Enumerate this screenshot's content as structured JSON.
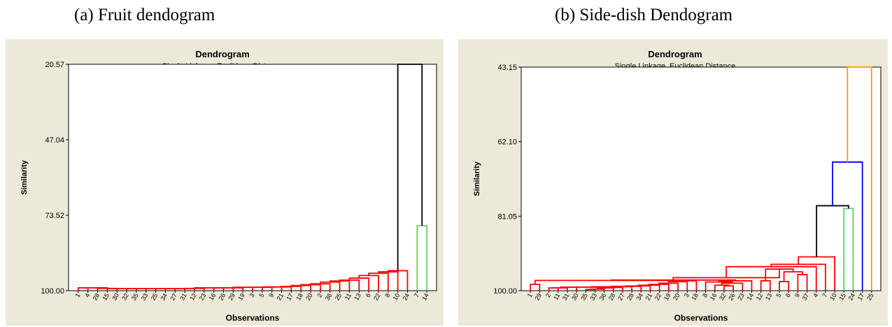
{
  "figure": {
    "caption_a": "(a)  Fruit dendogram",
    "caption_b": "(b) Side-dish Dendogram"
  },
  "chart_data": [
    {
      "type": "dendrogram",
      "title": "Dendrogram",
      "subtitle": "Single Linkage, Euclidean Distance",
      "xlabel": "Observations",
      "ylabel": "Similarity",
      "yticks": [
        "20.57",
        "47.04",
        "73.52",
        "100.00"
      ],
      "ylim": [
        20.57,
        100.0
      ],
      "leaves": [
        "1",
        "4",
        "28",
        "15",
        "30",
        "32",
        "35",
        "33",
        "25",
        "34",
        "27",
        "31",
        "12",
        "23",
        "16",
        "26",
        "29",
        "19",
        "3",
        "5",
        "9",
        "21",
        "17",
        "18",
        "20",
        "2",
        "36",
        "25",
        "11",
        "13",
        "6",
        "22",
        "8",
        "10",
        "24",
        "7",
        "14"
      ],
      "merges": [
        {
          "members": [
            0,
            1
          ],
          "height": 99.0,
          "color": "#ff0000"
        },
        {
          "members": [
            0,
            2
          ],
          "height": 99.0,
          "color": "#ff0000"
        },
        {
          "members": [
            0,
            3
          ],
          "height": 99.0,
          "color": "#ff0000"
        },
        {
          "members": [
            0,
            4
          ],
          "height": 99.2,
          "color": "#ff0000"
        },
        {
          "members": [
            0,
            5
          ],
          "height": 99.3,
          "color": "#ff0000"
        },
        {
          "members": [
            0,
            6
          ],
          "height": 99.3,
          "color": "#ff0000"
        },
        {
          "members": [
            0,
            7
          ],
          "height": 99.3,
          "color": "#ff0000"
        },
        {
          "members": [
            0,
            8
          ],
          "height": 99.3,
          "color": "#ff0000"
        },
        {
          "members": [
            0,
            9
          ],
          "height": 99.3,
          "color": "#ff0000"
        },
        {
          "members": [
            0,
            10
          ],
          "height": 99.3,
          "color": "#ff0000"
        },
        {
          "members": [
            0,
            11
          ],
          "height": 99.3,
          "color": "#ff0000"
        },
        {
          "members": [
            0,
            12
          ],
          "height": 99.3,
          "color": "#ff0000"
        },
        {
          "members": [
            0,
            13
          ],
          "height": 99.2,
          "color": "#ff0000"
        },
        {
          "members": [
            0,
            14
          ],
          "height": 99.0,
          "color": "#ff0000"
        },
        {
          "members": [
            0,
            15
          ],
          "height": 99.0,
          "color": "#ff0000"
        },
        {
          "members": [
            0,
            16
          ],
          "height": 99.0,
          "color": "#ff0000"
        },
        {
          "members": [
            0,
            17
          ],
          "height": 99.0,
          "color": "#ff0000"
        },
        {
          "members": [
            0,
            18
          ],
          "height": 98.8,
          "color": "#ff0000"
        },
        {
          "members": [
            0,
            19
          ],
          "height": 98.8,
          "color": "#ff0000"
        },
        {
          "members": [
            0,
            20
          ],
          "height": 98.8,
          "color": "#ff0000"
        },
        {
          "members": [
            0,
            21
          ],
          "height": 98.7,
          "color": "#ff0000"
        },
        {
          "members": [
            0,
            22
          ],
          "height": 98.7,
          "color": "#ff0000"
        },
        {
          "members": [
            0,
            23
          ],
          "height": 98.5,
          "color": "#ff0000"
        },
        {
          "members": [
            0,
            24
          ],
          "height": 98.2,
          "color": "#ff0000"
        },
        {
          "members": [
            0,
            25
          ],
          "height": 97.9,
          "color": "#ff0000"
        },
        {
          "members": [
            0,
            26
          ],
          "height": 97.6,
          "color": "#ff0000"
        },
        {
          "members": [
            0,
            27
          ],
          "height": 97.0,
          "color": "#ff0000"
        },
        {
          "members": [
            0,
            28
          ],
          "height": 96.6,
          "color": "#ff0000"
        },
        {
          "members": [
            0,
            29
          ],
          "height": 96.3,
          "color": "#ff0000"
        },
        {
          "members": [
            0,
            30
          ],
          "height": 95.6,
          "color": "#ff0000"
        },
        {
          "members": [
            0,
            31
          ],
          "height": 94.7,
          "color": "#ff0000"
        },
        {
          "members": [
            0,
            32
          ],
          "height": 93.9,
          "color": "#ff0000"
        },
        {
          "members": [
            0,
            33
          ],
          "height": 93.4,
          "color": "#ff0000"
        },
        {
          "members": [
            0,
            34
          ],
          "height": 93.0,
          "color": "#ff0000"
        },
        {
          "members": [
            35,
            36
          ],
          "height": 77.2,
          "color": "#66cc66"
        },
        {
          "members": [
            0,
            35
          ],
          "height": 20.57,
          "color": "#000000"
        }
      ]
    },
    {
      "type": "dendrogram",
      "title": "Dendrogram",
      "subtitle": "Single Linkage, Euclidean Distance",
      "xlabel": "Observations",
      "ylabel": "Similarity",
      "yticks": [
        "43.15",
        "62.10",
        "81.05",
        "100.00"
      ],
      "ylim": [
        43.15,
        100.0
      ],
      "leaves": [
        "1",
        "29",
        "2",
        "11",
        "31",
        "30",
        "35",
        "33",
        "36",
        "28",
        "27",
        "28",
        "34",
        "21",
        "22",
        "19",
        "20",
        "3",
        "18",
        "8",
        "16",
        "32",
        "26",
        "23",
        "14",
        "12",
        "13",
        "5",
        "6",
        "9",
        "37",
        "4",
        "7",
        "10",
        "15",
        "24",
        "17",
        "25"
      ],
      "merges": [
        {
          "members": [
            0,
            1
          ],
          "height": 98.4,
          "color": "#ff0000"
        },
        {
          "members": [
            2,
            3
          ],
          "height": 99.3,
          "color": "#ff0000"
        },
        {
          "members": [
            2,
            4
          ],
          "height": 99.3,
          "color": "#ff0000"
        },
        {
          "members": [
            2,
            5
          ],
          "height": 99.1,
          "color": "#ff0000"
        },
        {
          "members": [
            6,
            7
          ],
          "height": 99.7,
          "color": "#ff0000"
        },
        {
          "members": [
            6,
            8
          ],
          "height": 99.6,
          "color": "#ff0000"
        },
        {
          "members": [
            6,
            9
          ],
          "height": 99.3,
          "color": "#ff0000"
        },
        {
          "members": [
            6,
            10
          ],
          "height": 99.2,
          "color": "#ff0000"
        },
        {
          "members": [
            2,
            6
          ],
          "height": 99.1,
          "color": "#ff0000"
        },
        {
          "members": [
            2,
            11
          ],
          "height": 99.0,
          "color": "#ff0000"
        },
        {
          "members": [
            2,
            12
          ],
          "height": 98.9,
          "color": "#ff0000"
        },
        {
          "members": [
            2,
            13
          ],
          "height": 98.8,
          "color": "#ff0000"
        },
        {
          "members": [
            2,
            14
          ],
          "height": 98.6,
          "color": "#ff0000"
        },
        {
          "members": [
            2,
            15
          ],
          "height": 98.4,
          "color": "#ff0000"
        },
        {
          "members": [
            2,
            16
          ],
          "height": 98.1,
          "color": "#ff0000"
        },
        {
          "members": [
            2,
            17
          ],
          "height": 97.7,
          "color": "#ff0000"
        },
        {
          "members": [
            2,
            18
          ],
          "height": 97.5,
          "color": "#ff0000"
        },
        {
          "members": [
            0,
            2
          ],
          "height": 97.4,
          "color": "#ff0000"
        },
        {
          "members": [
            21,
            22
          ],
          "height": 98.8,
          "color": "#ff0000"
        },
        {
          "members": [
            20,
            21
          ],
          "height": 98.6,
          "color": "#ff0000"
        },
        {
          "members": [
            20,
            23
          ],
          "height": 98.1,
          "color": "#ff0000"
        },
        {
          "members": [
            19,
            20
          ],
          "height": 97.8,
          "color": "#ff0000"
        },
        {
          "members": [
            19,
            24
          ],
          "height": 97.5,
          "color": "#ff0000"
        },
        {
          "members": [
            0,
            19
          ],
          "height": 97.3,
          "color": "#ff0000"
        },
        {
          "members": [
            25,
            26
          ],
          "height": 97.5,
          "color": "#ff0000"
        },
        {
          "members": [
            27,
            28
          ],
          "height": 97.7,
          "color": "#ff0000"
        },
        {
          "members": [
            29,
            30
          ],
          "height": 95.9,
          "color": "#ff0000"
        },
        {
          "members": [
            27,
            29
          ],
          "height": 95.2,
          "color": "#ff0000"
        },
        {
          "members": [
            25,
            27
          ],
          "height": 94.5,
          "color": "#ff0000"
        },
        {
          "members": [
            0,
            25
          ],
          "height": 96.7,
          "color": "#ff0000"
        },
        {
          "members": [
            0,
            31
          ],
          "height": 93.9,
          "color": "#ff0000"
        },
        {
          "members": [
            0,
            32
          ],
          "height": 93.3,
          "color": "#ff0000"
        },
        {
          "members": [
            0,
            33
          ],
          "height": 91.4,
          "color": "#ff0000"
        },
        {
          "members": [
            34,
            35
          ],
          "height": 79.1,
          "color": "#66cc66"
        },
        {
          "members": [
            0,
            34
          ],
          "height": 78.4,
          "color": "#000000"
        },
        {
          "members": [
            0,
            36
          ],
          "height": 67.3,
          "color": "#0000ff"
        },
        {
          "members": [
            0,
            37
          ],
          "height": 43.15,
          "color": "#ff9900"
        }
      ]
    }
  ]
}
